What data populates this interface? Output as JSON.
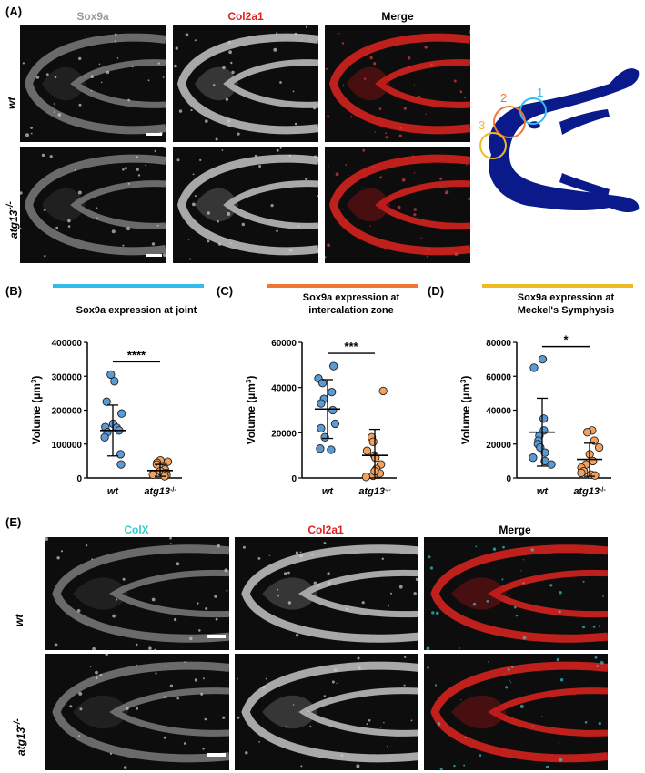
{
  "panelA": {
    "label": "(A)",
    "columns": [
      "Sox9a",
      "Col2a1",
      "Merge"
    ],
    "column_colors": [
      "#9a9a9a",
      "#e02020",
      "#000000"
    ],
    "rows": [
      {
        "html": "<i>wt</i>"
      },
      {
        "html": "<i>atg13</i><sup>-/-</sup>"
      }
    ],
    "diagram_numbers": [
      "1",
      "2",
      "3"
    ],
    "diagram_colors": {
      "1": "#33bbee",
      "2": "#ee7733",
      "3": "#eebb22",
      "cartilage": "#0a1a8a"
    }
  },
  "panelE": {
    "label": "(E)",
    "columns": [
      "ColX",
      "Col2a1",
      "Merge"
    ],
    "column_colors": [
      "#33cccc",
      "#e02020",
      "#000000"
    ],
    "rows": [
      {
        "html": "<i>wt</i>"
      },
      {
        "html": "<i>atg13</i><sup>-/-</sup>"
      }
    ]
  },
  "chart_data": [
    {
      "type": "scatter",
      "panel": "(B)",
      "title": "Sox9a expression at joint",
      "bar_color": "#33bbee",
      "ylabel_html": "Volume (µm<tspan baseline-shift=\"super\" font-size=\"8\">3</tspan>)",
      "ylim": [
        0,
        400000
      ],
      "yticks": [
        0,
        100000,
        200000,
        300000,
        400000
      ],
      "ytick_labels": [
        "0",
        "100000",
        "200000",
        "300000",
        "400000"
      ],
      "categories_html": [
        "<tspan font-style=\"italic\">wt</tspan>",
        "<tspan font-style=\"italic\">atg13</tspan><tspan baseline-shift=\"super\" font-size=\"7\">-/-</tspan>"
      ],
      "significance": "****",
      "series": [
        {
          "color": "#5b9bd5",
          "mean": 140000,
          "sd_low": 65000,
          "sd_high": 215000,
          "values": [
            305000,
            285000,
            225000,
            190000,
            160000,
            150000,
            148000,
            140000,
            135000,
            120000,
            70000,
            40000
          ]
        },
        {
          "color": "#f4a15d",
          "mean": 22000,
          "sd_low": 5000,
          "sd_high": 40000,
          "values": [
            52000,
            48000,
            45000,
            40000,
            35000,
            30000,
            25000,
            20000,
            15000,
            10000,
            8000,
            5000
          ]
        }
      ]
    },
    {
      "type": "scatter",
      "panel": "(C)",
      "title_lines": [
        "Sox9a expression at",
        "intercalation zone"
      ],
      "bar_color": "#ee7733",
      "ylabel_html": "Volume (µm<tspan baseline-shift=\"super\" font-size=\"8\">3</tspan>)",
      "ylim": [
        0,
        60000
      ],
      "yticks": [
        0,
        20000,
        40000,
        60000
      ],
      "ytick_labels": [
        "0",
        "20000",
        "40000",
        "60000"
      ],
      "categories_html": [
        "<tspan font-style=\"italic\">wt</tspan>",
        "<tspan font-style=\"italic\">atg13</tspan><tspan baseline-shift=\"super\" font-size=\"7\">-/-</tspan>"
      ],
      "significance": "***",
      "series": [
        {
          "color": "#5b9bd5",
          "mean": 30500,
          "sd_low": 17500,
          "sd_high": 43500,
          "values": [
            49500,
            44000,
            42000,
            38000,
            35000,
            33000,
            30000,
            24000,
            22000,
            18000,
            13000,
            12500
          ]
        },
        {
          "color": "#f4a15d",
          "mean": 10000,
          "sd_low": 0,
          "sd_high": 21500,
          "values": [
            38500,
            18000,
            16000,
            12000,
            10000,
            9000,
            6000,
            4000,
            2000,
            1000,
            500,
            3000
          ]
        }
      ]
    },
    {
      "type": "scatter",
      "panel": "(D)",
      "title_lines": [
        "Sox9a expression at",
        "Meckel's Symphysis"
      ],
      "bar_color": "#eebb22",
      "ylabel_html": "Volume (µm<tspan baseline-shift=\"super\" font-size=\"8\">3</tspan>)",
      "ylim": [
        0,
        80000
      ],
      "yticks": [
        0,
        20000,
        40000,
        60000,
        80000
      ],
      "ytick_labels": [
        "0",
        "20000",
        "40000",
        "60000",
        "80000"
      ],
      "categories_html": [
        "<tspan font-style=\"italic\">wt</tspan>",
        "<tspan font-style=\"italic\">atg13</tspan><tspan baseline-shift=\"super\" font-size=\"7\">-/-</tspan>"
      ],
      "significance": "*",
      "series": [
        {
          "color": "#5b9bd5",
          "mean": 27000,
          "sd_low": 7000,
          "sd_high": 47000,
          "values": [
            70000,
            65000,
            35000,
            28000,
            25000,
            22000,
            20000,
            18000,
            15000,
            12000,
            10000,
            8000
          ]
        },
        {
          "color": "#f4a15d",
          "mean": 11000,
          "sd_low": 1000,
          "sd_high": 20500,
          "values": [
            28000,
            27000,
            22000,
            18000,
            14000,
            10000,
            8000,
            6000,
            4000,
            3000,
            2000,
            1500
          ]
        }
      ]
    }
  ]
}
